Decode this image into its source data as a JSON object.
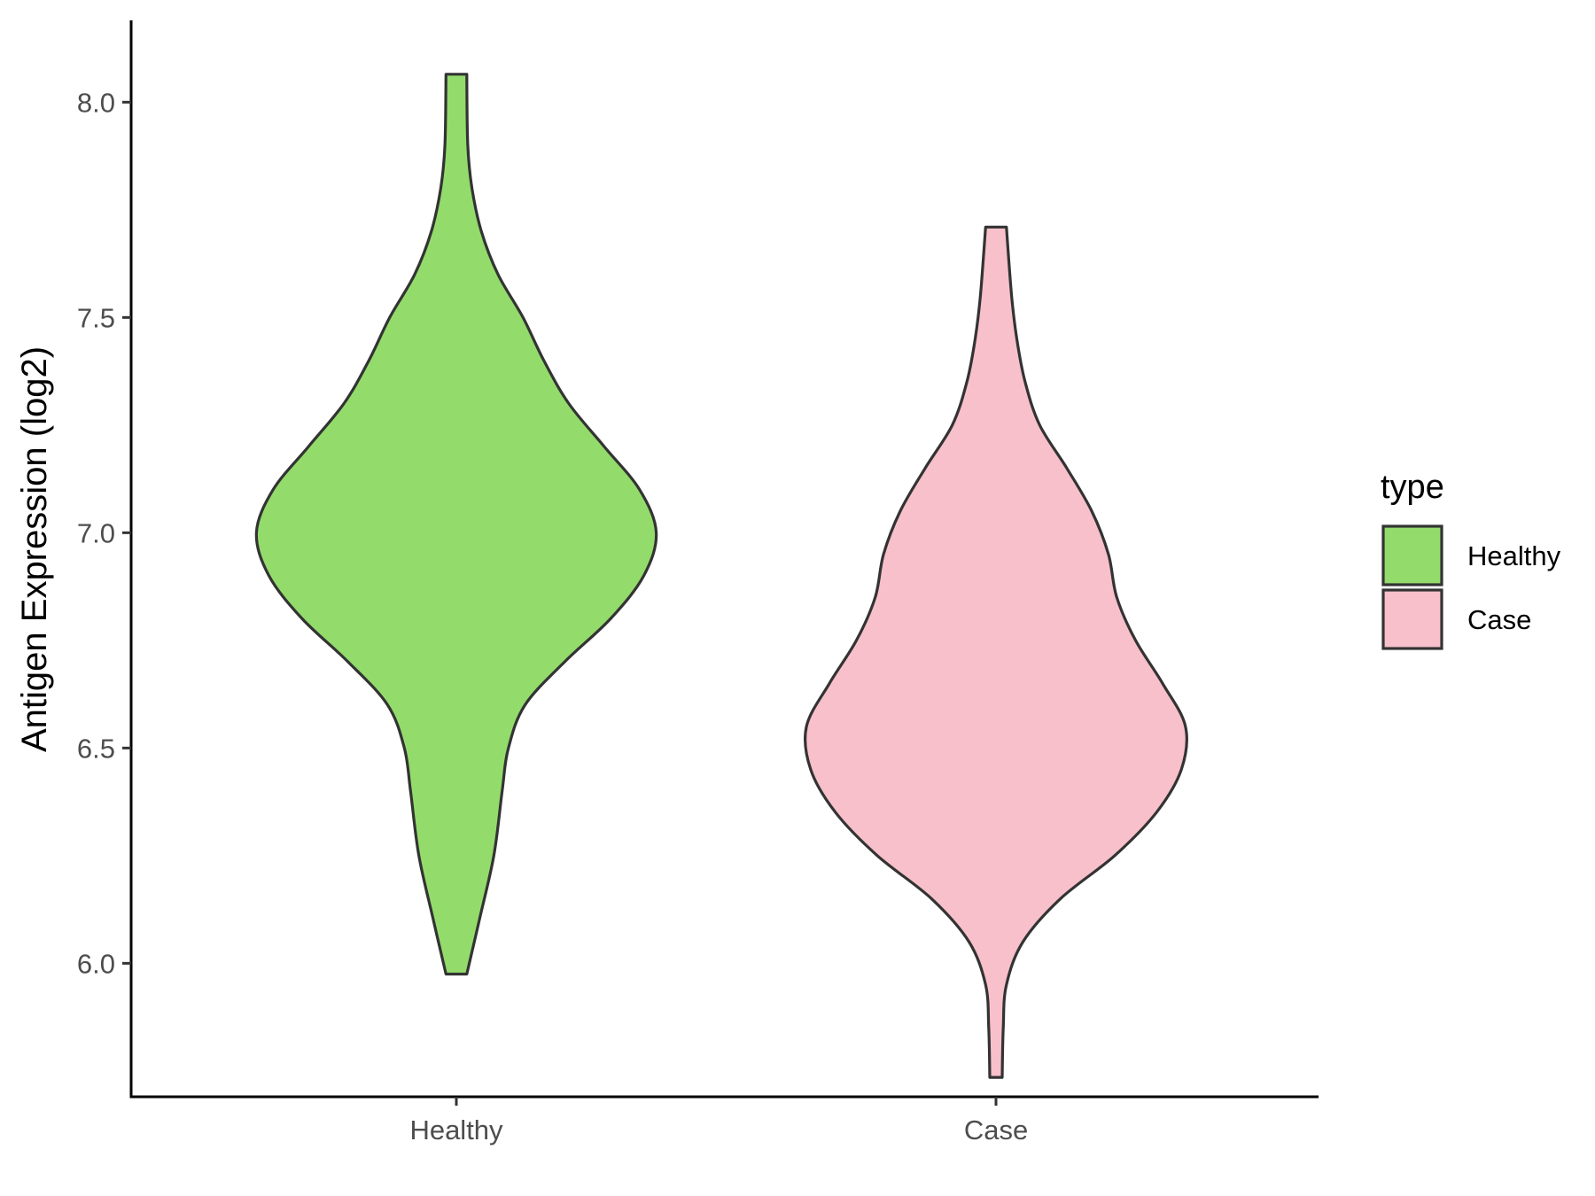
{
  "chart_data": {
    "type": "violin",
    "title": "",
    "xlabel": "",
    "ylabel": "Antigen Expression (log2)",
    "ylim": [
      5.69,
      8.19
    ],
    "yticks": [
      "6.0",
      "6.5",
      "7.0",
      "7.5",
      "8.0"
    ],
    "grid": false,
    "legend": {
      "title": "type",
      "placement": "right",
      "entries": [
        "Healthy",
        "Case"
      ]
    },
    "categories": [
      "Healthy",
      "Case"
    ],
    "series": [
      {
        "name": "Healthy",
        "color": "#93dc6b",
        "ymin": 5.975,
        "ymax": 8.065,
        "profile": [
          [
            5.975,
            0.05
          ],
          [
            6.1,
            0.11
          ],
          [
            6.25,
            0.18
          ],
          [
            6.4,
            0.22
          ],
          [
            6.5,
            0.25
          ],
          [
            6.6,
            0.33
          ],
          [
            6.7,
            0.52
          ],
          [
            6.8,
            0.74
          ],
          [
            6.9,
            0.9
          ],
          [
            7.0,
            0.96
          ],
          [
            7.1,
            0.88
          ],
          [
            7.2,
            0.71
          ],
          [
            7.3,
            0.54
          ],
          [
            7.4,
            0.42
          ],
          [
            7.5,
            0.32
          ],
          [
            7.6,
            0.2
          ],
          [
            7.7,
            0.12
          ],
          [
            7.8,
            0.075
          ],
          [
            7.9,
            0.055
          ],
          [
            8.065,
            0.05
          ]
        ]
      },
      {
        "name": "Case",
        "color": "#f7c0cb",
        "ymin": 5.735,
        "ymax": 7.71,
        "profile": [
          [
            5.735,
            0.03
          ],
          [
            5.85,
            0.035
          ],
          [
            5.95,
            0.05
          ],
          [
            6.05,
            0.13
          ],
          [
            6.15,
            0.31
          ],
          [
            6.25,
            0.57
          ],
          [
            6.35,
            0.77
          ],
          [
            6.45,
            0.89
          ],
          [
            6.55,
            0.91
          ],
          [
            6.65,
            0.8
          ],
          [
            6.75,
            0.67
          ],
          [
            6.85,
            0.58
          ],
          [
            6.95,
            0.54
          ],
          [
            7.05,
            0.46
          ],
          [
            7.15,
            0.34
          ],
          [
            7.25,
            0.21
          ],
          [
            7.35,
            0.14
          ],
          [
            7.45,
            0.1
          ],
          [
            7.55,
            0.075
          ],
          [
            7.71,
            0.05
          ]
        ]
      }
    ]
  }
}
